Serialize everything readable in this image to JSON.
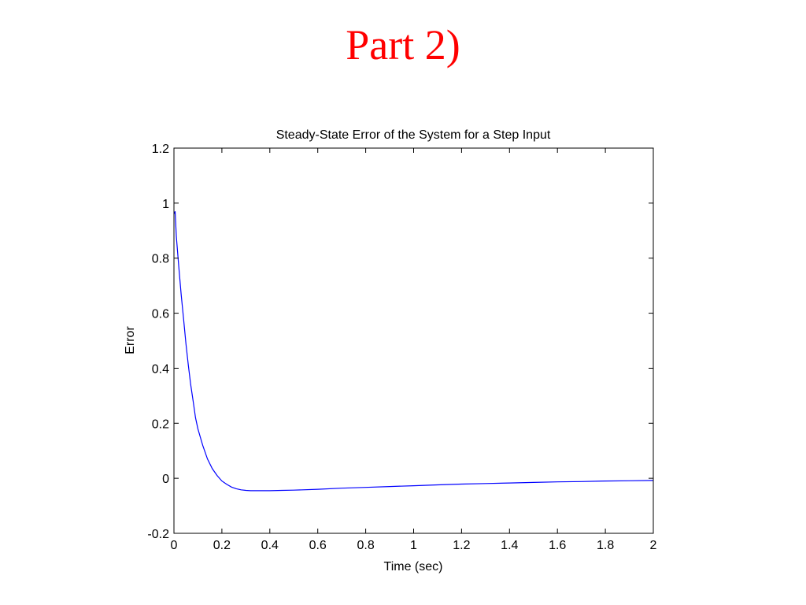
{
  "slide": {
    "title": "Part 2)"
  },
  "chart_data": {
    "type": "line",
    "title": "Steady-State Error of the System for a Step Input",
    "xlabel": "Time (sec)",
    "ylabel": "Error",
    "xlim": [
      0,
      2
    ],
    "ylim": [
      -0.2,
      1.2
    ],
    "xticks": [
      0,
      0.2,
      0.4,
      0.6,
      0.8,
      1,
      1.2,
      1.4,
      1.6,
      1.8,
      2
    ],
    "yticks": [
      -0.2,
      0,
      0.2,
      0.4,
      0.6,
      0.8,
      1,
      1.2
    ],
    "xtick_labels": [
      "0",
      "0.2",
      "0.4",
      "0.6",
      "0.8",
      "1",
      "1.2",
      "1.4",
      "1.6",
      "1.8",
      "2"
    ],
    "ytick_labels": [
      "-0.2",
      "0",
      "0.2",
      "0.4",
      "0.6",
      "0.8",
      "1",
      "1.2"
    ],
    "grid": false,
    "series": [
      {
        "color": "#0000ff",
        "x": [
          0,
          0.005,
          0.01,
          0.02,
          0.03,
          0.04,
          0.05,
          0.06,
          0.07,
          0.08,
          0.09,
          0.1,
          0.12,
          0.14,
          0.16,
          0.18,
          0.2,
          0.22,
          0.24,
          0.26,
          0.28,
          0.3,
          0.32,
          0.35,
          0.4,
          0.45,
          0.5,
          0.6,
          0.7,
          0.8,
          0.9,
          1.0,
          1.1,
          1.2,
          1.3,
          1.4,
          1.5,
          1.6,
          1.7,
          1.8,
          1.9,
          2.0
        ],
        "y": [
          0.96,
          0.97,
          0.88,
          0.77,
          0.67,
          0.58,
          0.49,
          0.41,
          0.34,
          0.28,
          0.22,
          0.18,
          0.12,
          0.07,
          0.035,
          0.01,
          -0.01,
          -0.022,
          -0.032,
          -0.038,
          -0.042,
          -0.044,
          -0.045,
          -0.045,
          -0.045,
          -0.044,
          -0.043,
          -0.04,
          -0.036,
          -0.033,
          -0.03,
          -0.027,
          -0.024,
          -0.021,
          -0.019,
          -0.017,
          -0.015,
          -0.013,
          -0.012,
          -0.01,
          -0.009,
          -0.008
        ]
      }
    ]
  }
}
